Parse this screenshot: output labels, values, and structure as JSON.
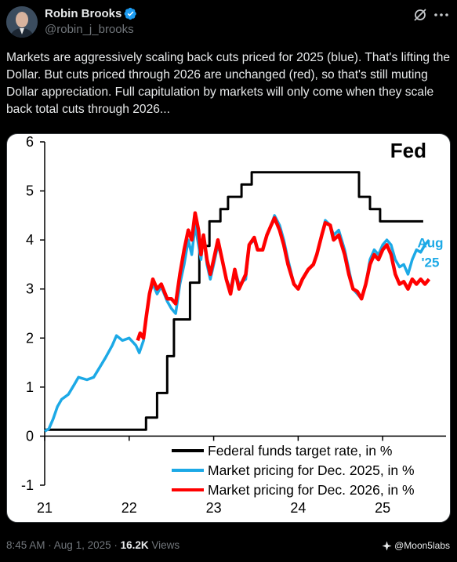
{
  "author": {
    "display_name": "Robin Brooks",
    "handle": "@robin_j_brooks",
    "verified_icon": "verified-badge-icon"
  },
  "tweet": {
    "text": "Markets are aggressively scaling back cuts priced for 2025 (blue). That's lifting the Dollar. But cuts priced through 2026 are unchanged (red), so that's still muting Dollar appreciation. Full capitulation by markets will only come when they scale back total cuts through 2026..."
  },
  "meta": {
    "time": "8:45 AM",
    "sep1": " · ",
    "date": "Aug 1, 2025",
    "sep2": " · ",
    "views_count": "16.2K",
    "views_label": " Views"
  },
  "watermark": {
    "text": "@Moon5labs"
  },
  "colors": {
    "background": "#000000",
    "text": "#e7e9ea",
    "muted": "#71767b",
    "verified": "#1d9bf0",
    "fed": "#000000",
    "blue": "#1ca9e6",
    "red": "#ff0000"
  },
  "chart_data": {
    "type": "line",
    "title": "Fed",
    "ylim": [
      -1,
      6
    ],
    "xlim": [
      2021.0,
      2025.75
    ],
    "y_ticks": [
      "6",
      "5",
      "4",
      "3",
      "2",
      "1",
      "0",
      "-1"
    ],
    "x_ticks": [
      "21",
      "22",
      "23",
      "24",
      "25"
    ],
    "annotation": {
      "line1": "Aug",
      "line2": "'25",
      "color": "#1ca9e6"
    },
    "legend": {
      "position": "bottom-right",
      "entries": [
        "Federal funds target rate, in %",
        "Market pricing for Dec. 2025, in %",
        "Market pricing for Dec. 2026, in %"
      ]
    },
    "series": [
      {
        "name": "Federal funds target rate, in %",
        "color": "#000000",
        "step": true,
        "points": [
          [
            2021.0,
            0.13
          ],
          [
            2022.2,
            0.13
          ],
          [
            2022.2,
            0.38
          ],
          [
            2022.33,
            0.38
          ],
          [
            2022.33,
            0.88
          ],
          [
            2022.45,
            0.88
          ],
          [
            2022.45,
            1.63
          ],
          [
            2022.53,
            1.63
          ],
          [
            2022.53,
            2.38
          ],
          [
            2022.72,
            2.38
          ],
          [
            2022.72,
            3.13
          ],
          [
            2022.83,
            3.13
          ],
          [
            2022.83,
            3.88
          ],
          [
            2022.95,
            3.88
          ],
          [
            2022.95,
            4.38
          ],
          [
            2023.08,
            4.38
          ],
          [
            2023.08,
            4.63
          ],
          [
            2023.17,
            4.63
          ],
          [
            2023.17,
            4.88
          ],
          [
            2023.33,
            4.88
          ],
          [
            2023.33,
            5.13
          ],
          [
            2023.45,
            5.13
          ],
          [
            2023.45,
            5.38
          ],
          [
            2024.72,
            5.38
          ],
          [
            2024.72,
            4.88
          ],
          [
            2024.85,
            4.88
          ],
          [
            2024.85,
            4.63
          ],
          [
            2024.97,
            4.63
          ],
          [
            2024.97,
            4.38
          ],
          [
            2025.48,
            4.38
          ]
        ]
      },
      {
        "name": "Market pricing for Dec. 2025, in %",
        "color": "#1ca9e6",
        "points": [
          [
            2021.0,
            0.1
          ],
          [
            2021.05,
            0.15
          ],
          [
            2021.1,
            0.35
          ],
          [
            2021.15,
            0.6
          ],
          [
            2021.2,
            0.75
          ],
          [
            2021.28,
            0.85
          ],
          [
            2021.35,
            1.05
          ],
          [
            2021.4,
            1.2
          ],
          [
            2021.5,
            1.15
          ],
          [
            2021.58,
            1.2
          ],
          [
            2021.65,
            1.4
          ],
          [
            2021.72,
            1.6
          ],
          [
            2021.8,
            1.85
          ],
          [
            2021.85,
            2.05
          ],
          [
            2021.92,
            1.95
          ],
          [
            2022.0,
            2.0
          ],
          [
            2022.08,
            1.85
          ],
          [
            2022.12,
            1.7
          ],
          [
            2022.17,
            1.95
          ],
          [
            2022.2,
            2.4
          ],
          [
            2022.24,
            2.9
          ],
          [
            2022.28,
            3.1
          ],
          [
            2022.33,
            2.9
          ],
          [
            2022.38,
            3.05
          ],
          [
            2022.45,
            2.75
          ],
          [
            2022.5,
            2.6
          ],
          [
            2022.55,
            2.5
          ],
          [
            2022.6,
            3.1
          ],
          [
            2022.65,
            3.5
          ],
          [
            2022.7,
            4.0
          ],
          [
            2022.74,
            3.7
          ],
          [
            2022.78,
            4.3
          ],
          [
            2022.82,
            3.9
          ],
          [
            2022.85,
            3.6
          ],
          [
            2022.88,
            4.1
          ],
          [
            2022.92,
            3.5
          ],
          [
            2022.96,
            3.2
          ],
          [
            2023.0,
            3.5
          ],
          [
            2023.05,
            3.9
          ],
          [
            2023.1,
            3.6
          ],
          [
            2023.15,
            3.2
          ],
          [
            2023.2,
            3.0
          ],
          [
            2023.25,
            3.4
          ],
          [
            2023.3,
            3.1
          ],
          [
            2023.38,
            3.2
          ],
          [
            2023.42,
            3.9
          ],
          [
            2023.48,
            4.0
          ],
          [
            2023.52,
            3.8
          ],
          [
            2023.58,
            3.8
          ],
          [
            2023.63,
            4.1
          ],
          [
            2023.68,
            4.3
          ],
          [
            2023.72,
            4.5
          ],
          [
            2023.78,
            4.3
          ],
          [
            2023.83,
            4.0
          ],
          [
            2023.88,
            3.6
          ],
          [
            2023.95,
            3.1
          ],
          [
            2024.0,
            3.0
          ],
          [
            2024.05,
            3.2
          ],
          [
            2024.12,
            3.4
          ],
          [
            2024.18,
            3.5
          ],
          [
            2024.22,
            3.7
          ],
          [
            2024.28,
            4.1
          ],
          [
            2024.32,
            4.4
          ],
          [
            2024.38,
            4.3
          ],
          [
            2024.42,
            4.1
          ],
          [
            2024.48,
            4.2
          ],
          [
            2024.55,
            3.8
          ],
          [
            2024.6,
            3.4
          ],
          [
            2024.65,
            3.0
          ],
          [
            2024.7,
            2.9
          ],
          [
            2024.75,
            2.8
          ],
          [
            2024.8,
            3.1
          ],
          [
            2024.85,
            3.6
          ],
          [
            2024.9,
            3.8
          ],
          [
            2024.95,
            3.7
          ],
          [
            2025.0,
            3.9
          ],
          [
            2025.05,
            4.0
          ],
          [
            2025.1,
            3.9
          ],
          [
            2025.15,
            3.6
          ],
          [
            2025.2,
            3.45
          ],
          [
            2025.25,
            3.5
          ],
          [
            2025.3,
            3.3
          ],
          [
            2025.35,
            3.6
          ],
          [
            2025.4,
            3.8
          ],
          [
            2025.45,
            3.75
          ],
          [
            2025.5,
            3.9
          ],
          [
            2025.55,
            4.0
          ]
        ]
      },
      {
        "name": "Market pricing for Dec. 2026, in %",
        "color": "#ff0000",
        "points": [
          [
            2022.1,
            1.95
          ],
          [
            2022.13,
            2.1
          ],
          [
            2022.17,
            2.0
          ],
          [
            2022.2,
            2.4
          ],
          [
            2022.24,
            2.9
          ],
          [
            2022.28,
            3.2
          ],
          [
            2022.33,
            3.0
          ],
          [
            2022.38,
            3.1
          ],
          [
            2022.45,
            2.8
          ],
          [
            2022.5,
            2.8
          ],
          [
            2022.55,
            2.7
          ],
          [
            2022.6,
            3.3
          ],
          [
            2022.65,
            3.8
          ],
          [
            2022.7,
            4.2
          ],
          [
            2022.74,
            4.0
          ],
          [
            2022.78,
            4.55
          ],
          [
            2022.82,
            4.2
          ],
          [
            2022.85,
            3.7
          ],
          [
            2022.88,
            4.1
          ],
          [
            2022.92,
            3.6
          ],
          [
            2022.96,
            3.3
          ],
          [
            2023.0,
            3.6
          ],
          [
            2023.05,
            4.0
          ],
          [
            2023.1,
            3.6
          ],
          [
            2023.15,
            3.2
          ],
          [
            2023.2,
            2.9
          ],
          [
            2023.25,
            3.4
          ],
          [
            2023.3,
            3.0
          ],
          [
            2023.38,
            3.3
          ],
          [
            2023.42,
            3.9
          ],
          [
            2023.48,
            4.05
          ],
          [
            2023.52,
            3.8
          ],
          [
            2023.58,
            3.8
          ],
          [
            2023.63,
            4.1
          ],
          [
            2023.68,
            4.3
          ],
          [
            2023.72,
            4.45
          ],
          [
            2023.78,
            4.2
          ],
          [
            2023.83,
            3.9
          ],
          [
            2023.88,
            3.5
          ],
          [
            2023.95,
            3.1
          ],
          [
            2024.0,
            3.0
          ],
          [
            2024.05,
            3.2
          ],
          [
            2024.12,
            3.4
          ],
          [
            2024.18,
            3.5
          ],
          [
            2024.22,
            3.7
          ],
          [
            2024.28,
            4.1
          ],
          [
            2024.32,
            4.35
          ],
          [
            2024.38,
            4.3
          ],
          [
            2024.42,
            4.0
          ],
          [
            2024.48,
            4.1
          ],
          [
            2024.55,
            3.7
          ],
          [
            2024.6,
            3.3
          ],
          [
            2024.65,
            3.0
          ],
          [
            2024.7,
            2.95
          ],
          [
            2024.75,
            2.8
          ],
          [
            2024.8,
            3.1
          ],
          [
            2024.85,
            3.5
          ],
          [
            2024.9,
            3.7
          ],
          [
            2024.95,
            3.6
          ],
          [
            2025.0,
            3.8
          ],
          [
            2025.05,
            3.9
          ],
          [
            2025.1,
            3.7
          ],
          [
            2025.15,
            3.3
          ],
          [
            2025.2,
            3.1
          ],
          [
            2025.25,
            3.15
          ],
          [
            2025.3,
            3.0
          ],
          [
            2025.35,
            3.2
          ],
          [
            2025.4,
            3.1
          ],
          [
            2025.45,
            3.2
          ],
          [
            2025.5,
            3.1
          ],
          [
            2025.55,
            3.2
          ]
        ]
      }
    ]
  }
}
